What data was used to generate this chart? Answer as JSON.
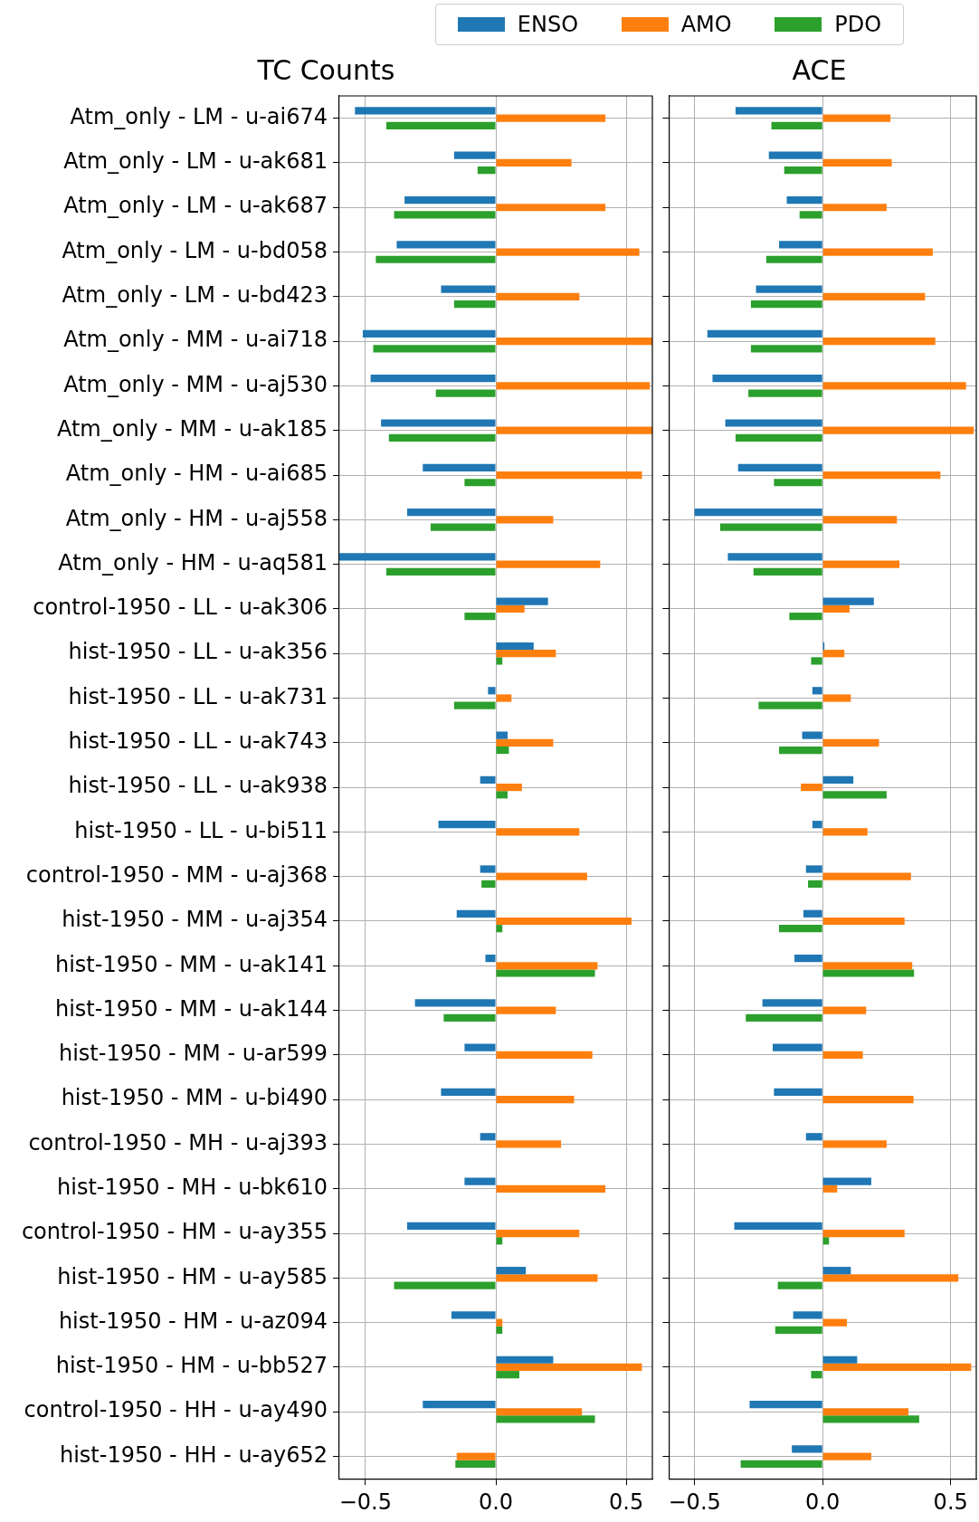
{
  "chart_data": [
    {
      "type": "bar",
      "orientation": "horizontal",
      "title": "TC Counts",
      "legend": "top",
      "grid": true,
      "categories": [
        "Atm_only - LM - u-ai674",
        "Atm_only - LM - u-ak681",
        "Atm_only - LM - u-ak687",
        "Atm_only - LM - u-bd058",
        "Atm_only - LM - u-bd423",
        "Atm_only - MM - u-ai718",
        "Atm_only - MM - u-aj530",
        "Atm_only - MM - u-ak185",
        "Atm_only - HM - u-ai685",
        "Atm_only - HM - u-aj558",
        "Atm_only - HM - u-aq581",
        "control-1950 - LL - u-ak306",
        "hist-1950 - LL - u-ak356",
        "hist-1950 - LL - u-ak731",
        "hist-1950 - LL - u-ak743",
        "hist-1950 - LL - u-ak938",
        "hist-1950 - LL - u-bi511",
        "control-1950 - MM - u-aj368",
        "hist-1950 - MM - u-aj354",
        "hist-1950 - MM - u-ak141",
        "hist-1950 - MM - u-ak144",
        "hist-1950 - MM - u-ar599",
        "hist-1950 - MM - u-bi490",
        "control-1950 - MH - u-aj393",
        "hist-1950 - MH - u-bk610",
        "control-1950 - HM - u-ay355",
        "hist-1950 - HM - u-ay585",
        "hist-1950 - HM - u-az094",
        "hist-1950 - HM - u-bb527",
        "control-1950 - HH - u-ay490",
        "hist-1950 - HH - u-ay652"
      ],
      "xlim": [
        -0.6,
        0.6
      ],
      "xticks": [
        {
          "value": -0.5,
          "label": "−0.5"
        },
        {
          "value": 0,
          "label": "0.0"
        },
        {
          "value": 0.5,
          "label": "0.5"
        }
      ],
      "series": [
        {
          "name": "ENSO",
          "color": "#1f77b4",
          "values": [
            -0.54,
            -0.16,
            -0.35,
            -0.38,
            -0.21,
            -0.51,
            -0.48,
            -0.44,
            -0.28,
            -0.34,
            -0.6,
            0.2,
            0.145,
            -0.03,
            0.045,
            -0.06,
            -0.22,
            -0.06,
            -0.15,
            -0.04,
            -0.31,
            -0.12,
            -0.21,
            -0.06,
            -0.12,
            -0.34,
            0.115,
            -0.17,
            0.22,
            -0.28,
            null
          ]
        },
        {
          "name": "AMO",
          "color": "#ff7f0e",
          "values": [
            0.42,
            0.29,
            0.42,
            0.55,
            0.32,
            0.6,
            0.59,
            0.6,
            0.56,
            0.22,
            0.4,
            0.11,
            0.23,
            0.06,
            0.22,
            0.1,
            0.32,
            0.35,
            0.52,
            0.39,
            0.23,
            0.37,
            0.3,
            0.25,
            0.42,
            0.32,
            0.39,
            0.025,
            0.56,
            0.33,
            -0.15
          ]
        },
        {
          "name": "PDO",
          "color": "#2ca02c",
          "values": [
            -0.42,
            -0.07,
            -0.39,
            -0.46,
            -0.16,
            -0.47,
            -0.23,
            -0.41,
            -0.12,
            -0.25,
            -0.42,
            -0.12,
            0.025,
            -0.16,
            0.05,
            0.045,
            0,
            -0.055,
            0.025,
            0.38,
            -0.2,
            0,
            0,
            0,
            0,
            0.025,
            -0.39,
            0.025,
            0.09,
            0.38,
            -0.155
          ]
        }
      ]
    },
    {
      "type": "bar",
      "orientation": "horizontal",
      "title": "ACE",
      "grid": true,
      "tick_labels": "x",
      "categories": [
        null,
        null,
        null,
        null,
        null,
        null,
        null,
        null,
        null,
        null,
        null,
        null,
        null,
        null,
        null,
        null,
        null,
        null,
        null,
        null,
        null,
        null,
        null,
        null,
        null,
        null,
        null,
        null,
        null,
        null,
        null
      ],
      "xlim": [
        -0.6,
        0.6
      ],
      "xticks": [
        {
          "value": -0.5,
          "label": "−0.5"
        },
        {
          "value": 0,
          "label": "0.0"
        },
        {
          "value": 0.5,
          "label": "0.5"
        }
      ],
      "series": [
        {
          "color": "#1f77b4",
          "values": [
            -0.34,
            -0.21,
            -0.14,
            -0.17,
            -0.26,
            -0.45,
            -0.43,
            -0.38,
            -0.33,
            -0.5,
            -0.37,
            0.2,
            0.007,
            -0.04,
            -0.08,
            0.12,
            -0.04,
            -0.065,
            -0.075,
            -0.11,
            -0.235,
            -0.195,
            -0.19,
            -0.065,
            0.19,
            -0.345,
            0.11,
            -0.115,
            0.135,
            -0.285,
            -0.12
          ]
        },
        {
          "color": "#ff7f0e",
          "values": [
            0.265,
            0.27,
            0.25,
            0.43,
            0.4,
            0.44,
            0.56,
            0.59,
            0.46,
            0.29,
            0.3,
            0.105,
            0.085,
            0.11,
            0.22,
            -0.085,
            0.175,
            0.345,
            0.32,
            0.35,
            0.17,
            0.157,
            0.355,
            0.25,
            0.057,
            0.32,
            0.53,
            0.095,
            0.58,
            0.335,
            0.19
          ]
        },
        {
          "color": "#2ca02c",
          "values": [
            -0.2,
            -0.15,
            -0.09,
            -0.22,
            -0.28,
            -0.28,
            -0.29,
            -0.34,
            -0.19,
            -0.4,
            -0.27,
            -0.13,
            -0.045,
            -0.25,
            -0.17,
            0.25,
            0,
            -0.057,
            -0.17,
            0.357,
            -0.3,
            0,
            0,
            0,
            0,
            0.025,
            -0.175,
            -0.185,
            -0.045,
            0.377,
            -0.32
          ]
        }
      ]
    }
  ]
}
